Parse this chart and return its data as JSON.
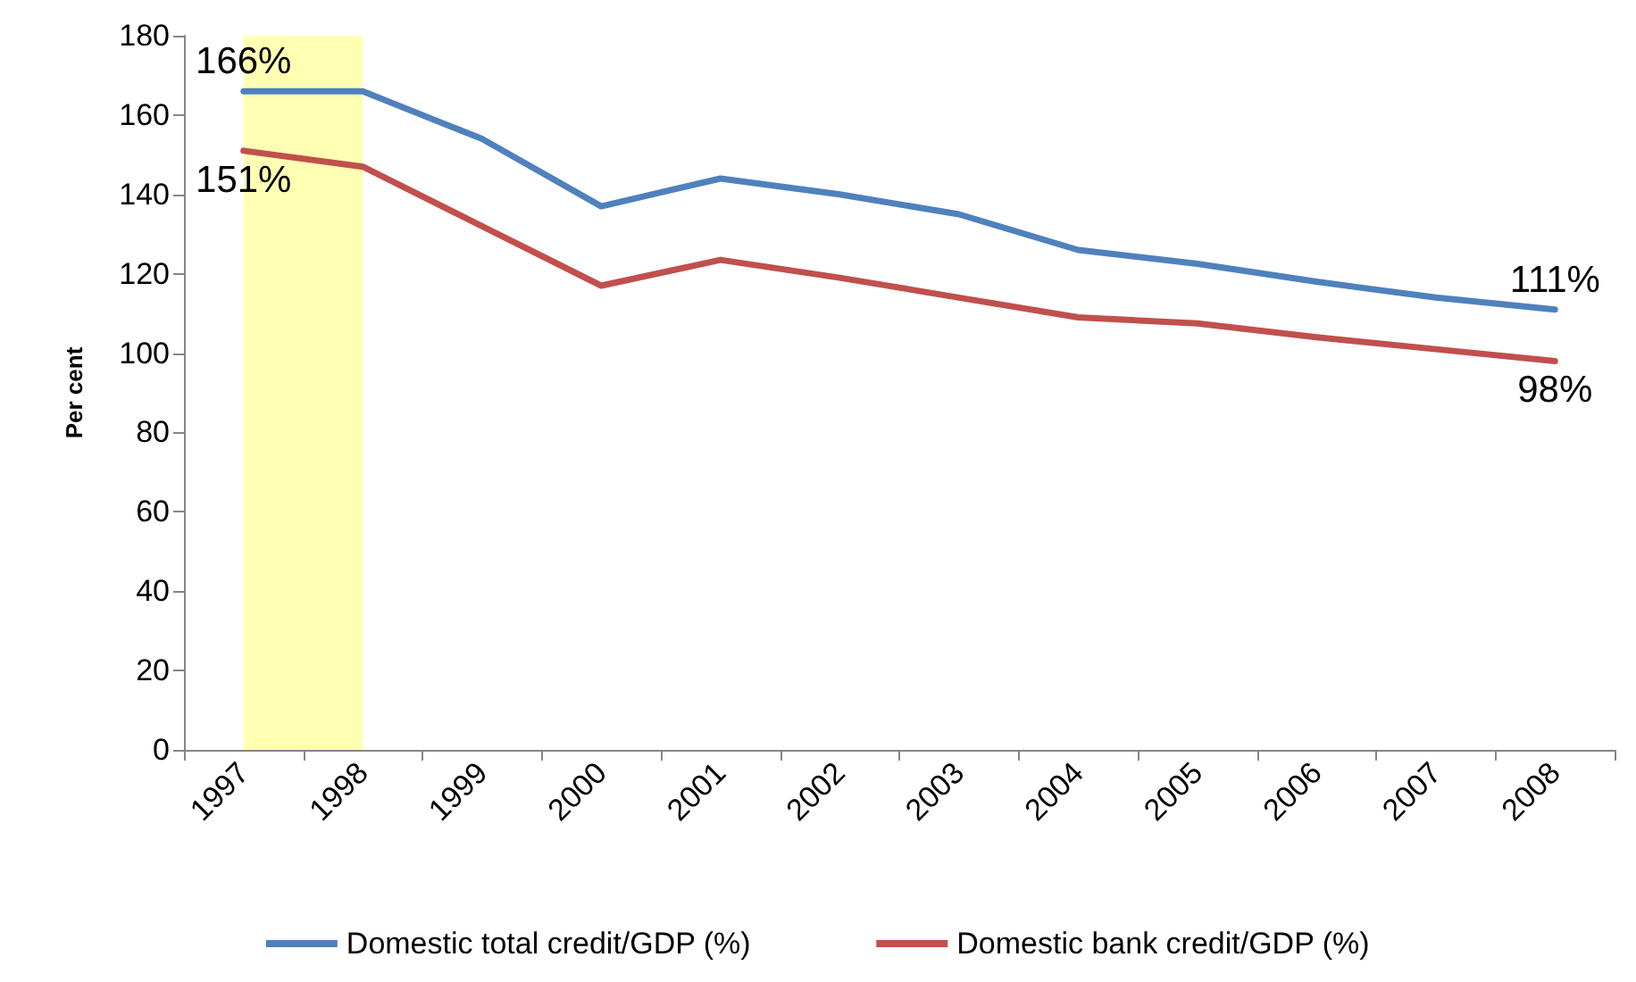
{
  "chart_data": {
    "type": "line",
    "ylabel": "Per cent",
    "categories": [
      "1997",
      "1998",
      "1999",
      "2000",
      "2001",
      "2002",
      "2003",
      "2004",
      "2005",
      "2006",
      "2007",
      "2008"
    ],
    "series": [
      {
        "name": "Domestic total credit/GDP (%)",
        "color": "#4f81bd",
        "values": [
          166,
          166,
          154,
          137,
          144,
          140,
          135,
          126,
          122.5,
          118,
          114,
          111
        ],
        "value_labels": [
          "166%",
          null,
          null,
          null,
          null,
          null,
          null,
          null,
          null,
          null,
          null,
          "111%"
        ]
      },
      {
        "name": "Domestic bank credit/GDP (%)",
        "color": "#c0504d",
        "values": [
          151,
          147,
          132,
          117,
          123.5,
          119,
          114,
          109,
          107.5,
          104,
          101,
          98
        ],
        "value_labels": [
          "151%",
          null,
          null,
          null,
          null,
          null,
          null,
          null,
          null,
          null,
          null,
          "98%"
        ]
      }
    ],
    "ylim": [
      0,
      180
    ],
    "yticks": [
      0,
      20,
      40,
      60,
      80,
      100,
      120,
      140,
      160,
      180
    ],
    "bands": [
      {
        "axis": "x",
        "from": "1997",
        "to": "1998",
        "color": "#ffffb3"
      }
    ],
    "grid": false,
    "legend": "bottom",
    "marker": "none",
    "line_style": "solid"
  }
}
